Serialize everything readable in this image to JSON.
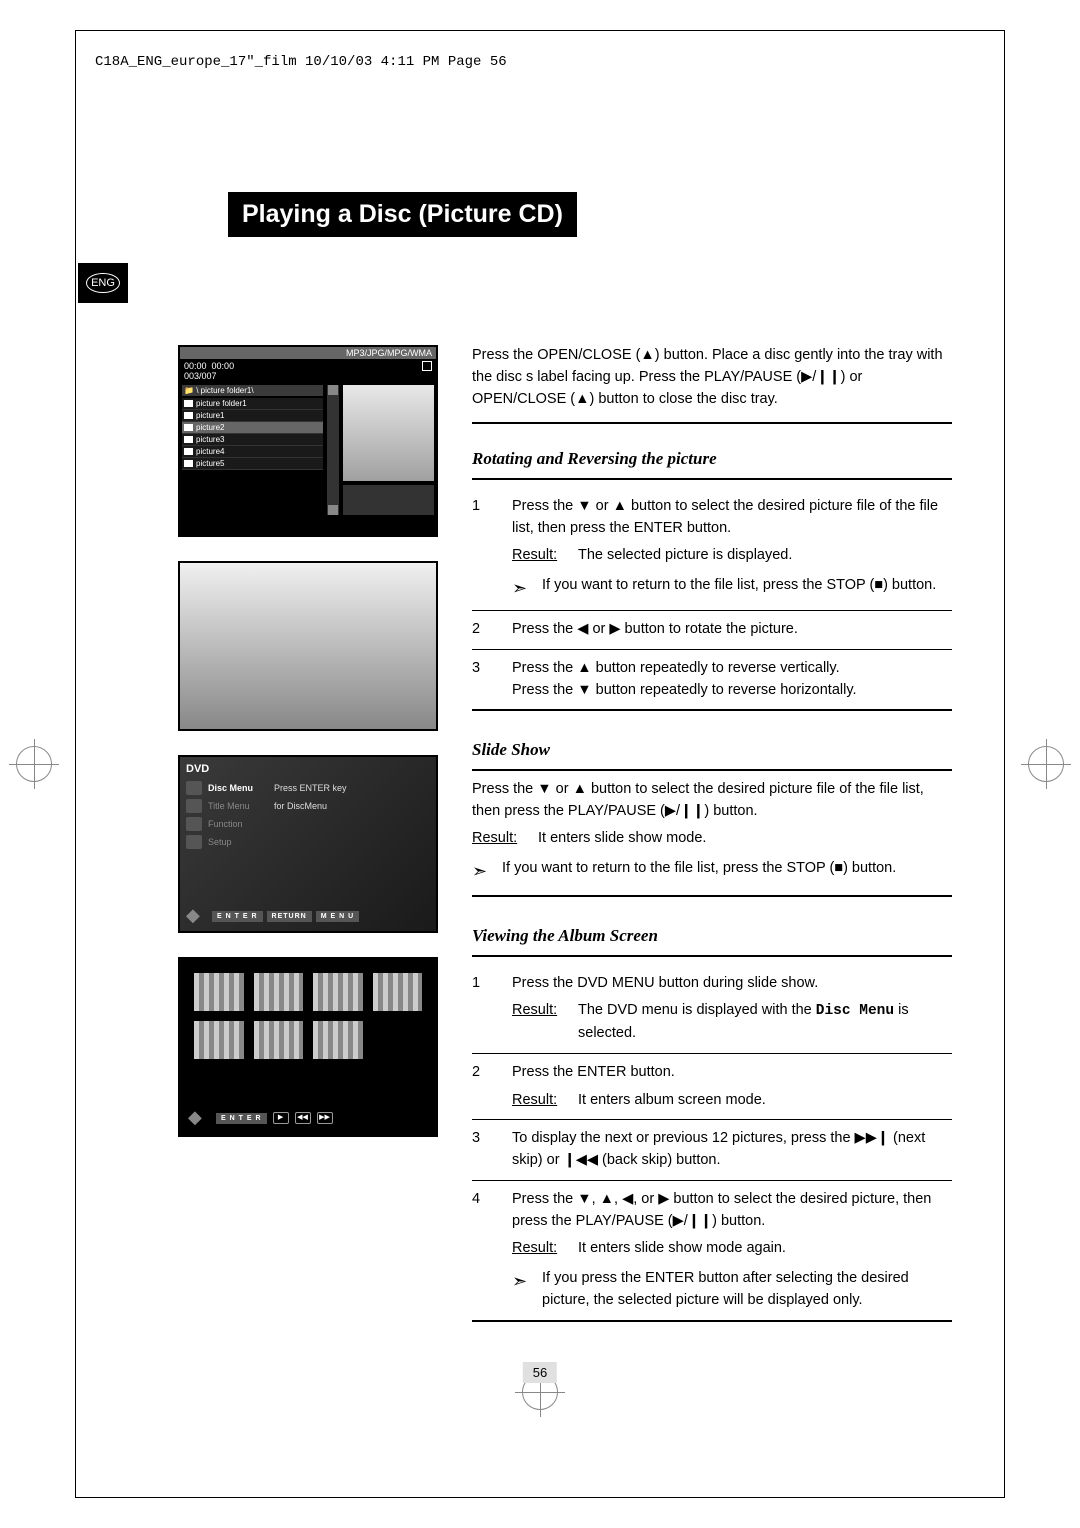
{
  "header": "C18A_ENG_europe_17\"_film  10/10/03  4:11 PM  Page 56",
  "lang_tab": "ENG",
  "title": "Playing a Disc (Picture CD)",
  "page_number": "56",
  "sc1": {
    "header": "MP3/JPG/MPG/WMA",
    "time1": "00:00",
    "time2": "00:00",
    "counter": "003/007",
    "path": "\\ picture folder1\\",
    "items": [
      {
        "label": "picture folder1",
        "sel": false,
        "icon": true
      },
      {
        "label": "picture1",
        "sel": false,
        "icon": true
      },
      {
        "label": "picture2",
        "sel": true,
        "icon": true
      },
      {
        "label": "picture3",
        "sel": false,
        "icon": true
      },
      {
        "label": "picture4",
        "sel": false,
        "icon": true
      },
      {
        "label": "picture5",
        "sel": false,
        "icon": true
      }
    ]
  },
  "sc3": {
    "dvd": "DVD",
    "rows": [
      {
        "label": "Disc Menu",
        "active": true,
        "hint": "Press ENTER key"
      },
      {
        "label": "Title Menu",
        "active": false,
        "hint": "for DiscMenu"
      },
      {
        "label": "Function",
        "active": false,
        "hint": ""
      },
      {
        "label": "Setup",
        "active": false,
        "hint": ""
      }
    ],
    "footer": [
      "E N T E R",
      "RETURN",
      "M E N U"
    ]
  },
  "sc4": {
    "footer_btn": "E N T E R"
  },
  "intro": {
    "p1a": "Press the OPEN/CLOSE (",
    "p1b": ") button. Place a disc gently into the tray with the disc s label facing up. Press the PLAY/PAUSE (",
    "p1c": ") or OPEN/CLOSE (",
    "p1d": ") button to close the disc tray."
  },
  "rotating": {
    "title": "Rotating and Reversing the picture",
    "s1a": "Press the ▼ or ▲ button to select the desired picture file of the file list, then press the ENTER button.",
    "s1_result_label": "Result:",
    "s1_result": "The selected picture is displayed.",
    "s1_note": "If you want to return to the file list, press the STOP (■) button.",
    "s2": "Press the ◀ or ▶ button to rotate the picture.",
    "s3a": "Press the ▲ button repeatedly to reverse vertically.",
    "s3b": "Press the ▼ button repeatedly to reverse horizontally."
  },
  "slide": {
    "title": "Slide Show",
    "p1": "Press the ▼ or ▲ button to select the desired picture file of the file list, then press the PLAY/PAUSE (▶/❙❙) button.",
    "result_label": "Result:",
    "result": "It enters slide show mode.",
    "note": "If you want to return to the file list, press the STOP (■) button."
  },
  "album": {
    "title": "Viewing the Album Screen",
    "s1": "Press the DVD MENU button during slide show.",
    "s1_result_label": "Result:",
    "s1_result_a": "The DVD menu is displayed with the ",
    "s1_result_b": "Disc Menu",
    "s1_result_c": " is selected.",
    "s2": "Press the ENTER button.",
    "s2_result_label": "Result:",
    "s2_result": "It enters album screen mode.",
    "s3": "To display the next or previous 12 pictures, press the ▶▶❙ (next skip) or ❙◀◀ (back skip) button.",
    "s4": "Press the ▼, ▲, ◀, or ▶ button to select the desired picture, then press the PLAY/PAUSE (▶/❙❙) button.",
    "s4_result_label": "Result:",
    "s4_result": "It enters slide show mode again.",
    "s4_note": "If you press the ENTER button after selecting the desired picture, the selected picture will be displayed only."
  },
  "symbols": {
    "eject": "▲",
    "playpause": "▶/❙❙",
    "note_arrow": "➣"
  }
}
